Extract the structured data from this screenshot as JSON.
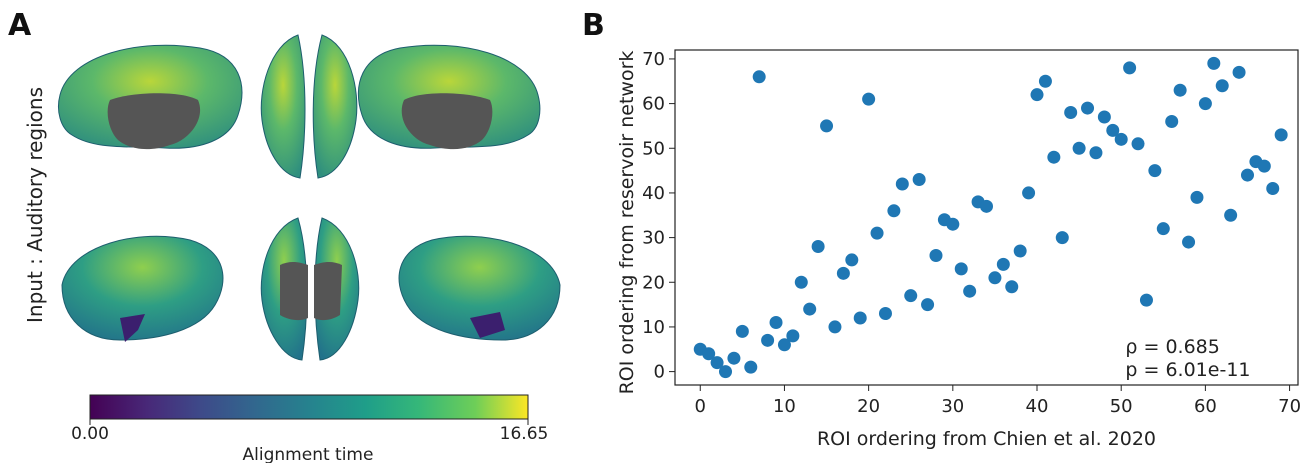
{
  "panel_a": {
    "letter": "A",
    "row_label": "Input :  Auditory regions",
    "colorbar": {
      "min_label": "0.00",
      "max_label": "16.65",
      "label": "Alignment time",
      "colormap": "viridis"
    },
    "brain_colors": {
      "medial_wall": "#555555",
      "low": "#3b0f70",
      "mid": "#21918c",
      "high": "#c8e020"
    }
  },
  "panel_b": {
    "letter": "B",
    "chart_data": {
      "type": "scatter",
      "xlabel": "ROI ordering from Chien et al. 2020",
      "ylabel": "ROI ordering from reservoir network",
      "xlim": [
        -3,
        71
      ],
      "ylim": [
        -3,
        72
      ],
      "xticks": [
        0,
        10,
        20,
        30,
        40,
        50,
        60,
        70
      ],
      "yticks": [
        0,
        10,
        20,
        30,
        40,
        50,
        60,
        70
      ],
      "grid": false,
      "marker_color": "#1f77b4",
      "annotations": [
        "ρ = 0.685",
        "p = 6.01e-11"
      ],
      "points": [
        [
          0,
          5
        ],
        [
          1,
          4
        ],
        [
          2,
          2
        ],
        [
          3,
          0
        ],
        [
          4,
          3
        ],
        [
          5,
          9
        ],
        [
          6,
          1
        ],
        [
          7,
          66
        ],
        [
          8,
          7
        ],
        [
          9,
          11
        ],
        [
          10,
          6
        ],
        [
          11,
          8
        ],
        [
          12,
          20
        ],
        [
          13,
          14
        ],
        [
          14,
          28
        ],
        [
          15,
          55
        ],
        [
          16,
          10
        ],
        [
          17,
          22
        ],
        [
          18,
          25
        ],
        [
          19,
          12
        ],
        [
          20,
          61
        ],
        [
          21,
          31
        ],
        [
          22,
          13
        ],
        [
          23,
          36
        ],
        [
          24,
          42
        ],
        [
          25,
          17
        ],
        [
          26,
          43
        ],
        [
          27,
          15
        ],
        [
          28,
          26
        ],
        [
          29,
          34
        ],
        [
          30,
          33
        ],
        [
          31,
          23
        ],
        [
          32,
          18
        ],
        [
          33,
          38
        ],
        [
          34,
          37
        ],
        [
          35,
          21
        ],
        [
          36,
          24
        ],
        [
          37,
          19
        ],
        [
          38,
          27
        ],
        [
          39,
          40
        ],
        [
          40,
          62
        ],
        [
          41,
          65
        ],
        [
          42,
          48
        ],
        [
          43,
          30
        ],
        [
          44,
          58
        ],
        [
          45,
          50
        ],
        [
          46,
          59
        ],
        [
          47,
          49
        ],
        [
          48,
          57
        ],
        [
          49,
          54
        ],
        [
          50,
          52
        ],
        [
          51,
          68
        ],
        [
          52,
          51
        ],
        [
          53,
          16
        ],
        [
          54,
          45
        ],
        [
          55,
          32
        ],
        [
          56,
          56
        ],
        [
          57,
          63
        ],
        [
          58,
          29
        ],
        [
          59,
          39
        ],
        [
          60,
          60
        ],
        [
          61,
          69
        ],
        [
          62,
          64
        ],
        [
          63,
          35
        ],
        [
          64,
          67
        ],
        [
          65,
          44
        ],
        [
          66,
          47
        ],
        [
          67,
          46
        ],
        [
          68,
          41
        ],
        [
          69,
          53
        ]
      ]
    }
  }
}
